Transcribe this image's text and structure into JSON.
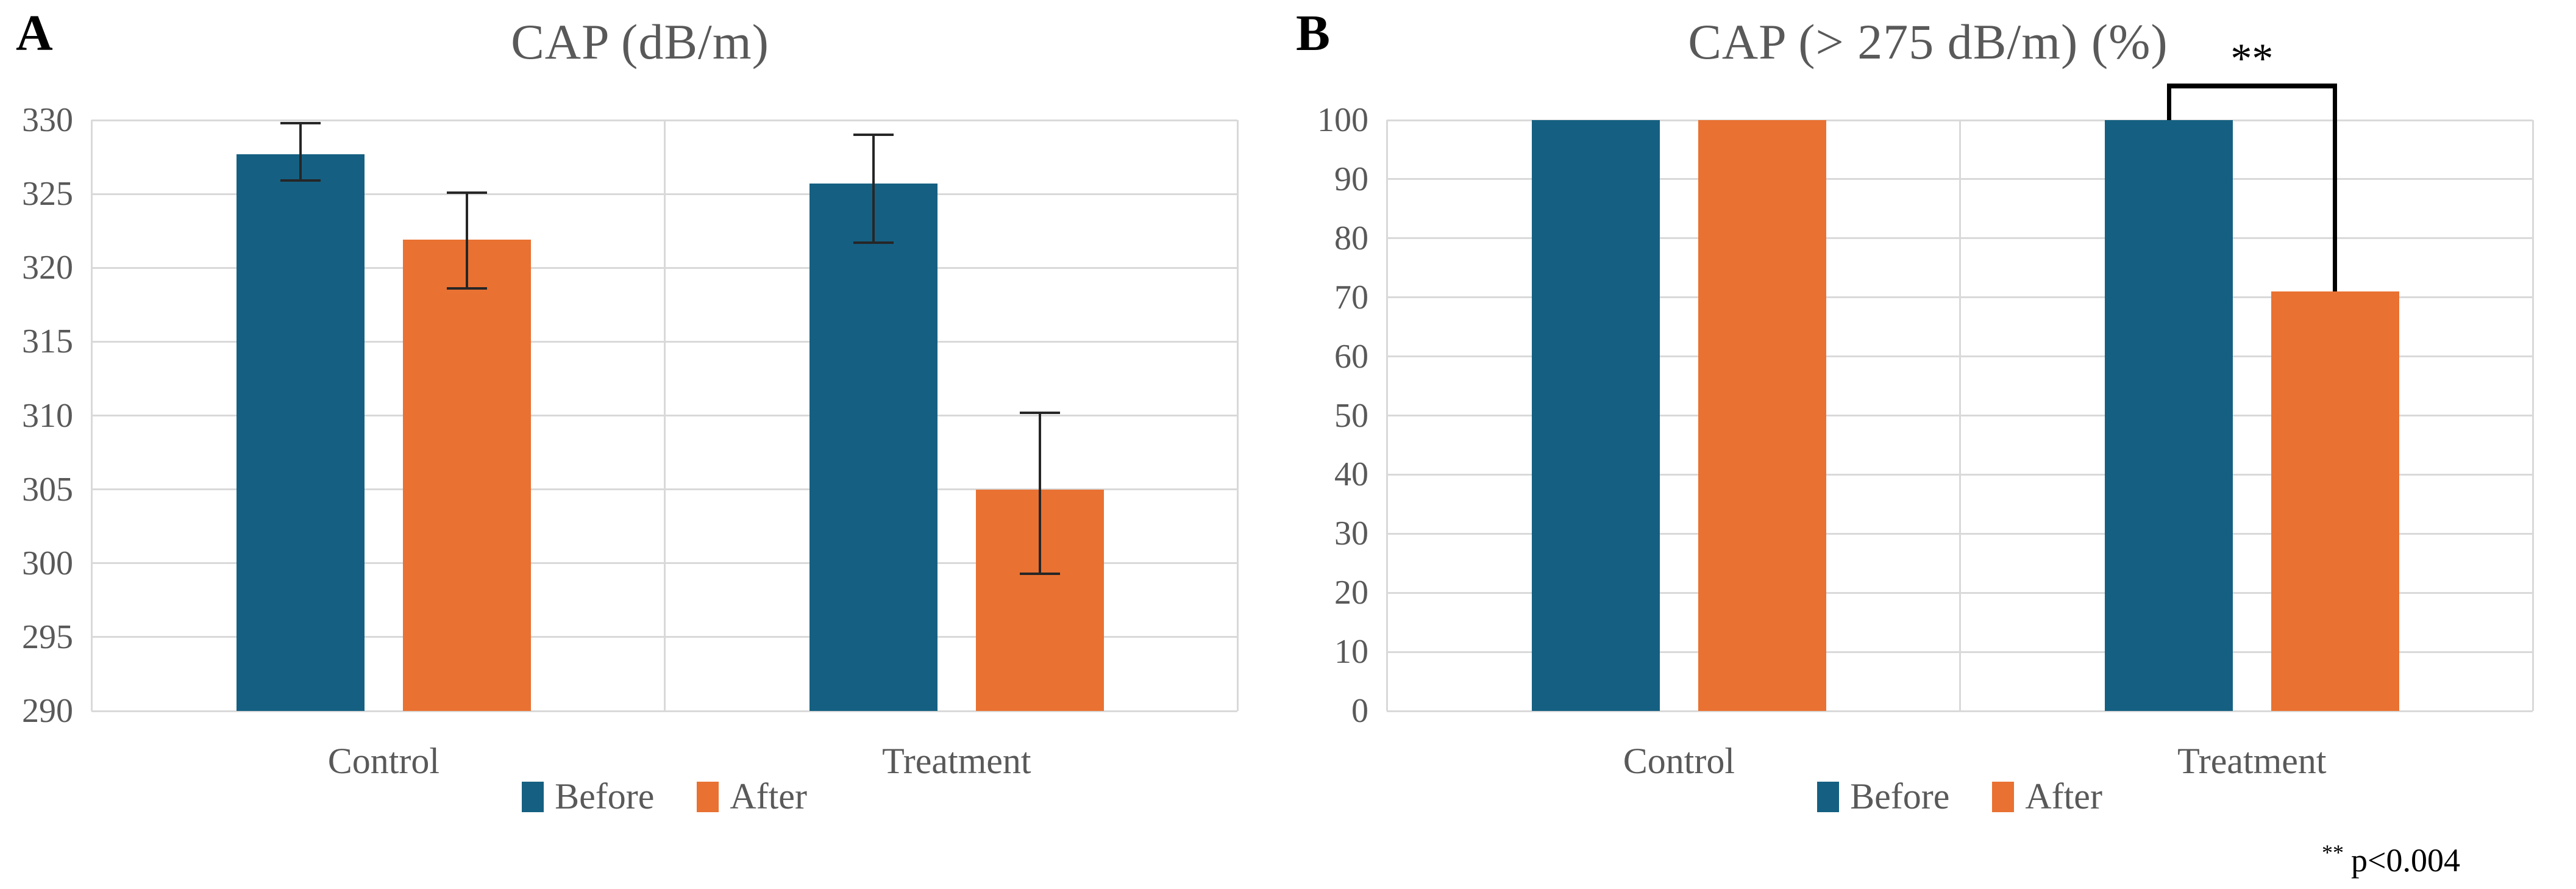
{
  "chart_data": [
    {
      "type": "bar",
      "panel_label": "A",
      "title": "CAP (dB/m)",
      "categories": [
        "Control",
        "Treatment"
      ],
      "series": [
        {
          "name": "Before",
          "color": "#156082",
          "values": [
            327.7,
            325.7
          ],
          "error_high": [
            329.8,
            329.0
          ],
          "error_low": [
            325.9,
            321.7
          ]
        },
        {
          "name": "After",
          "color": "#E97132",
          "values": [
            321.9,
            305.0
          ],
          "error_high": [
            325.1,
            310.2
          ],
          "error_low": [
            318.6,
            299.3
          ]
        }
      ],
      "ylim": [
        290,
        330
      ],
      "ytick_step": 5,
      "grid": true,
      "legend_position": "bottom",
      "legend_labels": [
        "Before",
        "After"
      ]
    },
    {
      "type": "bar",
      "panel_label": "B",
      "title": "CAP (> 275 dB/m) (%)",
      "categories": [
        "Control",
        "Treatment"
      ],
      "series": [
        {
          "name": "Before",
          "color": "#156082",
          "values": [
            100,
            100
          ]
        },
        {
          "name": "After",
          "color": "#E97132",
          "values": [
            100,
            71
          ]
        }
      ],
      "ylim": [
        0,
        100
      ],
      "ytick_step": 10,
      "grid": true,
      "legend_position": "bottom",
      "legend_labels": [
        "Before",
        "After"
      ],
      "significance": {
        "label": "**",
        "category": "Treatment",
        "from_series": "Before",
        "to_series": "After"
      },
      "footnote": {
        "sup": "**",
        "text": "p<0.004"
      }
    }
  ],
  "colors": {
    "series_before": "#156082",
    "series_after": "#E97132",
    "gridline": "#D9D9D9",
    "axis_text": "#595959",
    "title_text": "#595959",
    "annotation": "#000000"
  }
}
